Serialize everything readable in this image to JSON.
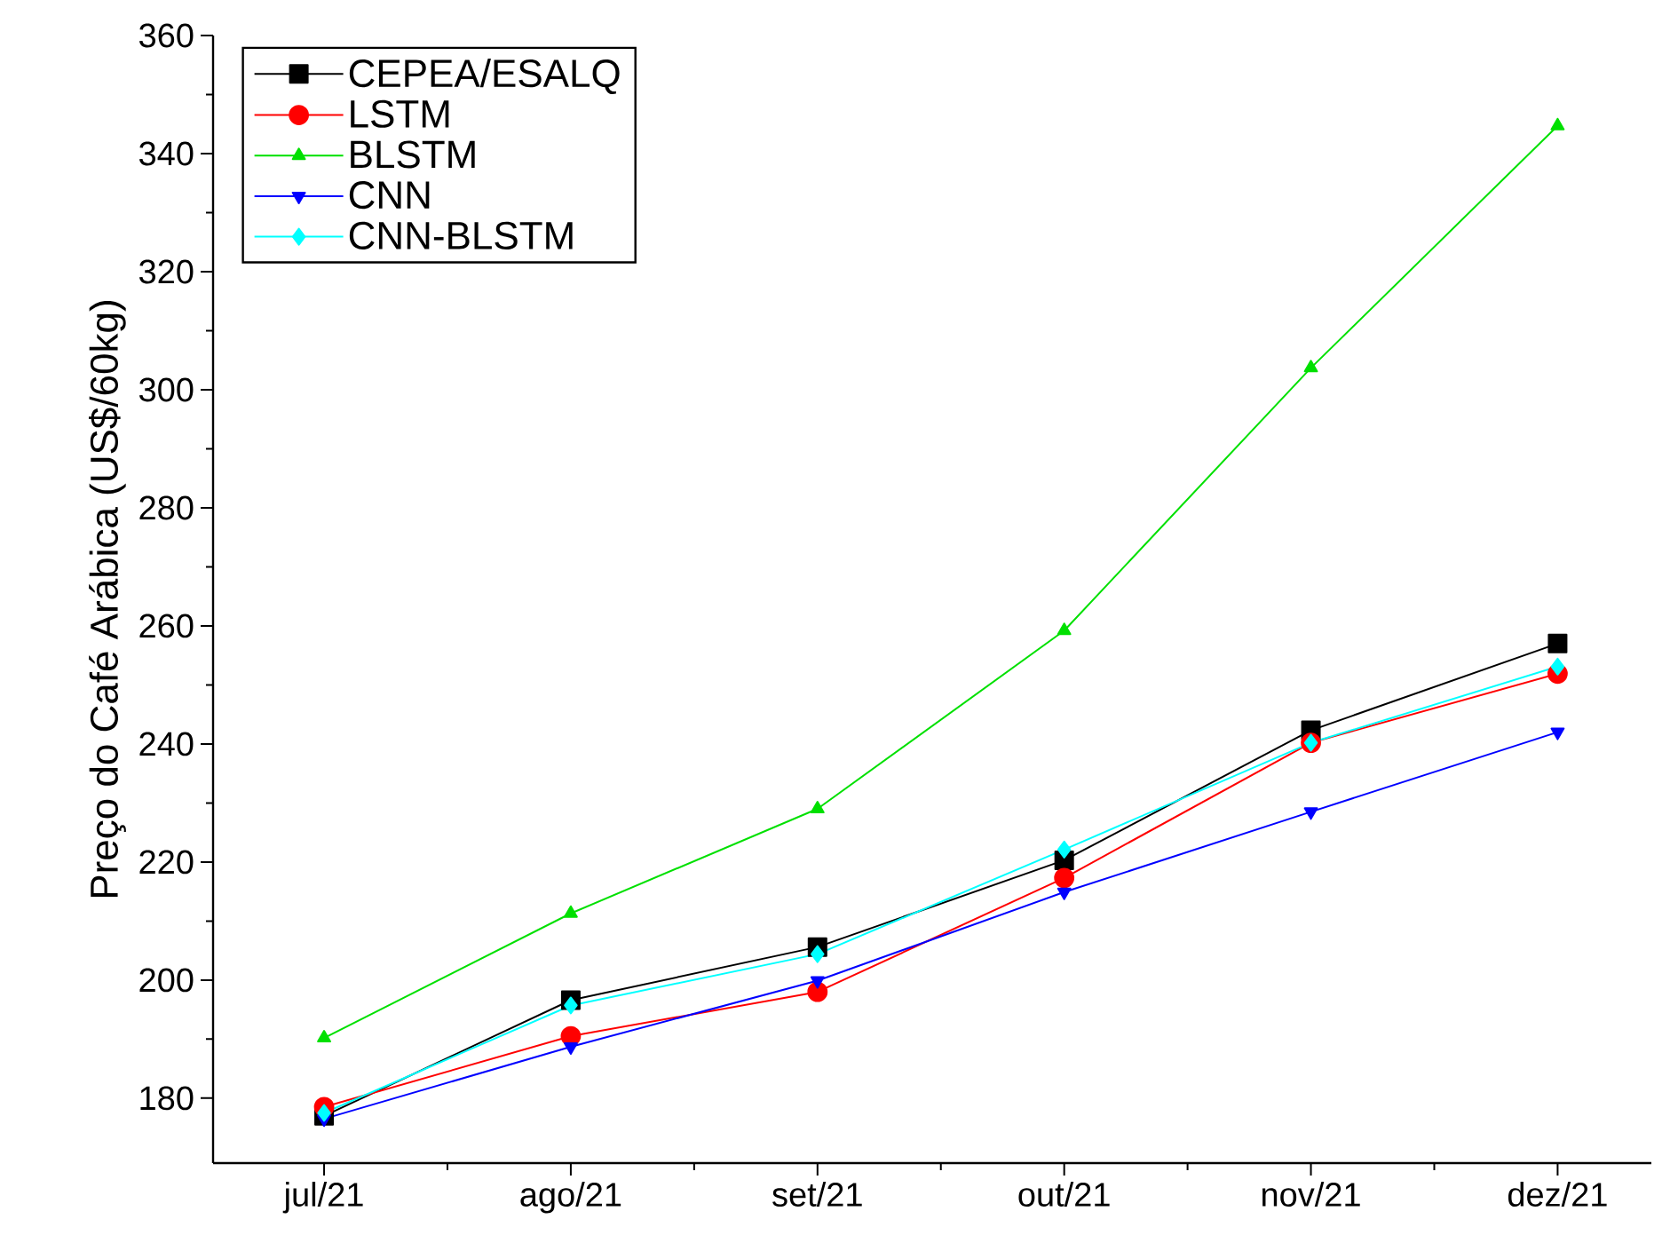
{
  "chart_data": {
    "type": "line",
    "ylabel": "Preço do Café Arábica (US$/60kg)",
    "categories": [
      "jul/21",
      "ago/21",
      "set/21",
      "out/21",
      "nov/21",
      "dez/21"
    ],
    "ylim": [
      169,
      360
    ],
    "yticks": [
      180,
      200,
      220,
      240,
      260,
      280,
      300,
      320,
      340,
      360
    ],
    "legend": "top left",
    "line_style": "solid",
    "series": [
      {
        "name": "CEPEA/ESALQ",
        "color": "#000000",
        "marker": "square",
        "values": [
          177,
          196.6,
          205.6,
          220.3,
          242.3,
          257
        ]
      },
      {
        "name": "LSTM",
        "color": "#ff0000",
        "marker": "circle",
        "values": [
          178.5,
          190.5,
          198,
          217.3,
          240.2,
          251.9
        ]
      },
      {
        "name": "BLSTM",
        "color": "#00e000",
        "marker": "triangle",
        "values": [
          190.2,
          211.3,
          229,
          259.2,
          303.7,
          344.7
        ]
      },
      {
        "name": "CNN",
        "color": "#0000ff",
        "marker": "triangle down",
        "values": [
          176.5,
          188.7,
          199.9,
          214.9,
          228.5,
          242
        ]
      },
      {
        "name": "CNN-BLSTM",
        "color": "#00ffff",
        "marker": "diamond",
        "values": [
          177.5,
          195.7,
          204.4,
          222.1,
          240.2,
          253.1
        ]
      }
    ]
  }
}
